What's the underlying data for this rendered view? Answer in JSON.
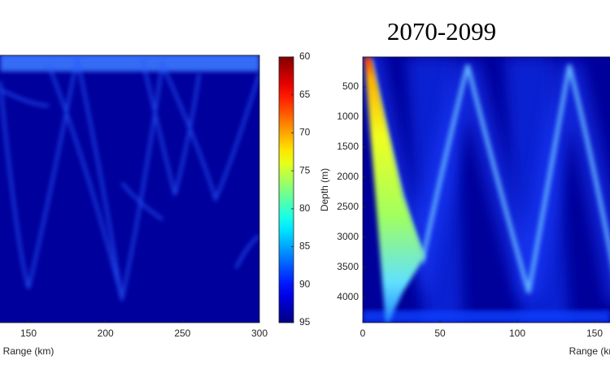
{
  "chart_data": [
    {
      "type": "heatmap",
      "xlabel": "Range (km)",
      "xlim": [
        0,
        300
      ],
      "xticks": [
        150,
        200,
        250,
        300
      ]
    },
    {
      "type": "colorbar",
      "colormap": "jet",
      "lim": [
        60,
        95
      ],
      "ticks": [
        60,
        65,
        70,
        75,
        80,
        85,
        90,
        95
      ]
    },
    {
      "type": "heatmap",
      "title": "2070-2099",
      "xlabel": "Range (km)",
      "ylabel": "Depth (m)",
      "xlim": [
        0,
        300
      ],
      "xticks": [
        0,
        50,
        100,
        150
      ],
      "ylim": [
        0,
        4420
      ],
      "yticks": [
        500,
        1000,
        1500,
        2000,
        2500,
        3000,
        3500,
        4000
      ]
    }
  ]
}
